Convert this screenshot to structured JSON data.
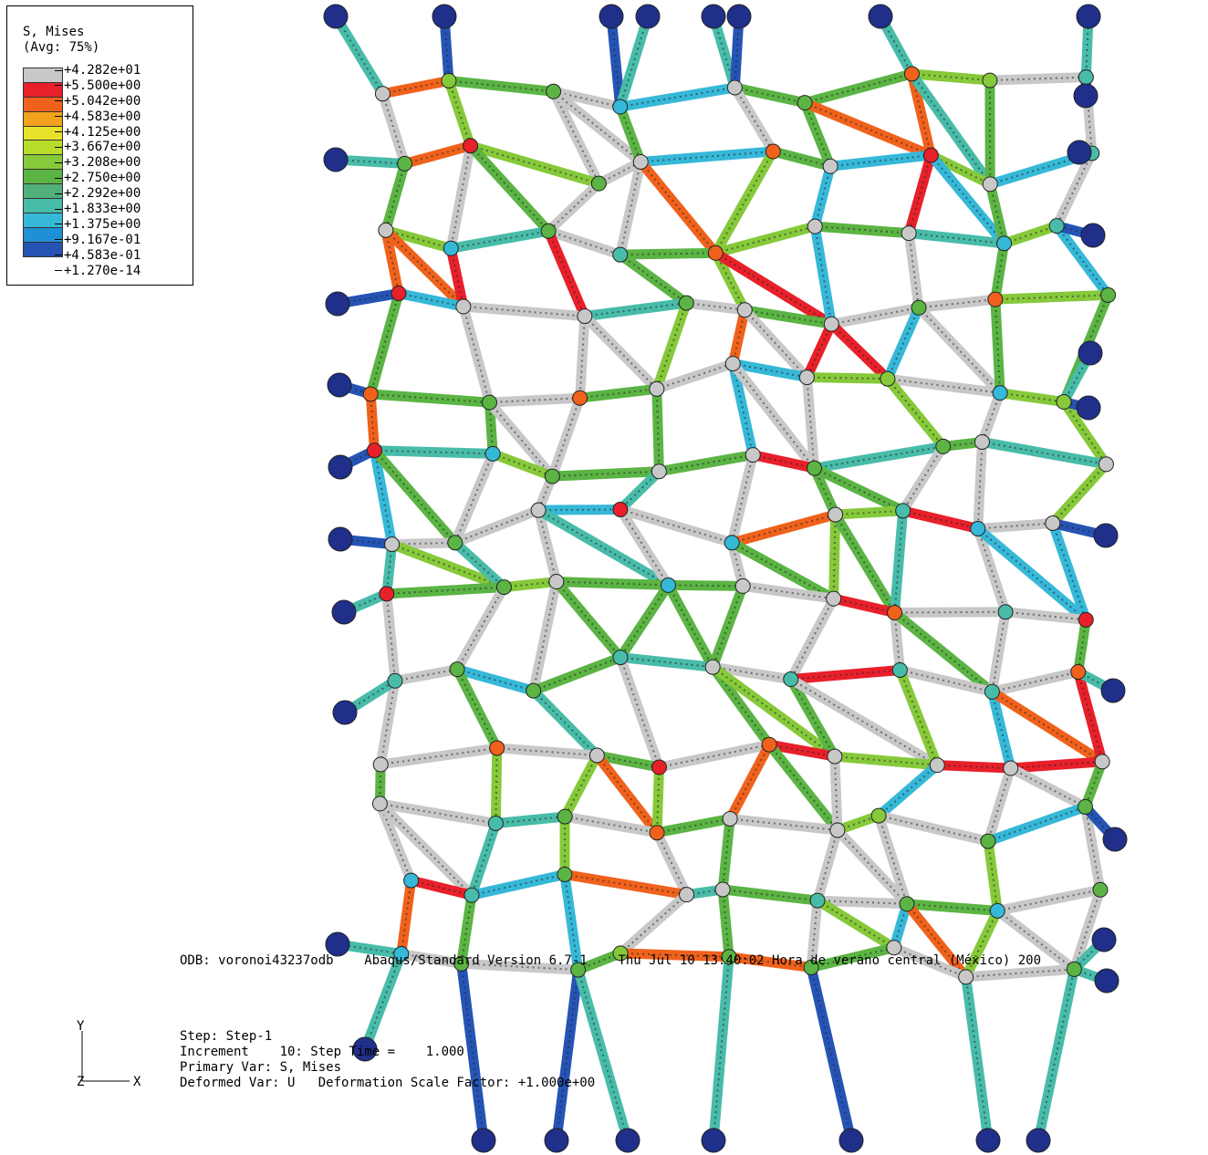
{
  "legend": {
    "title": "S, Mises",
    "subtitle": "(Avg: 75%)",
    "levels": [
      {
        "value": "+4.282e+01",
        "color": "#c8c8c8"
      },
      {
        "value": "+5.500e+00",
        "color": "#e8202a"
      },
      {
        "value": "+5.042e+00",
        "color": "#f0621c"
      },
      {
        "value": "+4.583e+00",
        "color": "#f2a21c"
      },
      {
        "value": "+4.125e+00",
        "color": "#e9e22b"
      },
      {
        "value": "+3.667e+00",
        "color": "#b8dc2a"
      },
      {
        "value": "+3.208e+00",
        "color": "#86c93a"
      },
      {
        "value": "+2.750e+00",
        "color": "#5bb444"
      },
      {
        "value": "+2.292e+00",
        "color": "#52b07a"
      },
      {
        "value": "+1.833e+00",
        "color": "#48bca9"
      },
      {
        "value": "+1.375e+00",
        "color": "#36b8d8"
      },
      {
        "value": "+9.167e-01",
        "color": "#1f8fd6"
      },
      {
        "value": "+4.583e-01",
        "color": "#2554b5"
      },
      {
        "value": "+1.270e-14",
        "color": ""
      }
    ]
  },
  "info": {
    "odb_line": "ODB: voronoi43237odb    Abaqus/Standard Version 6.7-1    Thu Jul 10 13:40:02 Hora de verano central (México) 200",
    "step": "Step: Step-1",
    "increment": "Increment    10: Step Time =    1.000",
    "primary_var": "Primary Var: S, Mises",
    "deformed_var": "Deformed Var: U   Deformation Scale Factor: +1.000e+00"
  },
  "triad": {
    "y": "Y",
    "x": "X",
    "z": "Z"
  },
  "colors": {
    "grey": "#c8c8c8",
    "red": "#e8202a",
    "orange": "#f0621c",
    "yellow": "#e9e22b",
    "green": "#5bb444",
    "lightgreen": "#86c93a",
    "cyan": "#36b8d8",
    "teal": "#48bca9",
    "blue": "#2554b5",
    "darkblue": "#1f2f8a",
    "mesh": "#222222"
  }
}
